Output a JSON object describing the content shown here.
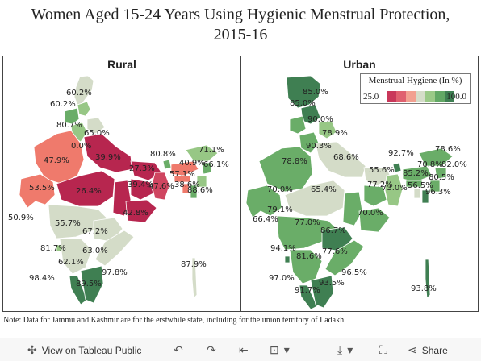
{
  "title_line1": "Women Aged 15-24 Years Using Hygienic Menstrual Protection,",
  "title_line2": "2015-16",
  "rural": {
    "title": "Rural",
    "labels": [
      {
        "name": "rural-label-jammu-kashmir-1",
        "text": "60.2%"
      },
      {
        "name": "rural-label-jammu-kashmir-2",
        "text": "60.2%"
      },
      {
        "name": "rural-label-punjab",
        "text": "80.7%"
      },
      {
        "name": "rural-label-uttarakhand",
        "text": "65.0%"
      },
      {
        "name": "rural-label-haryana",
        "text": "0.0%"
      },
      {
        "name": "rural-label-rajasthan",
        "text": "47.9%"
      },
      {
        "name": "rural-label-uttar-pradesh",
        "text": "39.9%"
      },
      {
        "name": "rural-label-bihar",
        "text": "27.3%"
      },
      {
        "name": "rural-label-gujarat",
        "text": "53.5%"
      },
      {
        "name": "rural-label-madhya-pradesh",
        "text": "26.4%"
      },
      {
        "name": "rural-label-jharkhand",
        "text": "39.4%"
      },
      {
        "name": "rural-label-west-bengal",
        "text": "47.6%"
      },
      {
        "name": "rural-label-sikkim",
        "text": "80.8%"
      },
      {
        "name": "rural-label-arunachal",
        "text": "71.1%"
      },
      {
        "name": "rural-label-assam",
        "text": "40.9%"
      },
      {
        "name": "rural-label-meghalaya",
        "text": "57.1%"
      },
      {
        "name": "rural-label-nagaland",
        "text": "66.1%"
      },
      {
        "name": "rural-label-tripura",
        "text": "38.6%"
      },
      {
        "name": "rural-label-mizoram",
        "text": "88.6%"
      },
      {
        "name": "rural-label-odisha",
        "text": "42.8%"
      },
      {
        "name": "rural-label-dadra",
        "text": "50.9%"
      },
      {
        "name": "rural-label-maharashtra",
        "text": "55.7%"
      },
      {
        "name": "rural-label-telangana",
        "text": "67.2%"
      },
      {
        "name": "rural-label-goa",
        "text": "81.7%"
      },
      {
        "name": "rural-label-andhra",
        "text": "63.0%"
      },
      {
        "name": "rural-label-karnataka",
        "text": "62.1%"
      },
      {
        "name": "rural-label-lakshadweep",
        "text": "98.4%"
      },
      {
        "name": "rural-label-puducherry",
        "text": "97.8%"
      },
      {
        "name": "rural-label-tamil-nadu",
        "text": "89.5%"
      },
      {
        "name": "rural-label-andaman",
        "text": "87.9%"
      }
    ]
  },
  "urban": {
    "title": "Urban",
    "labels": [
      {
        "name": "urban-label-jammu-kashmir-1",
        "text": "85.0%"
      },
      {
        "name": "urban-label-jammu-kashmir-2",
        "text": "85.0%"
      },
      {
        "name": "urban-label-himachal",
        "text": "90.0%"
      },
      {
        "name": "urban-label-uttarakhand",
        "text": "78.9%"
      },
      {
        "name": "urban-label-haryana",
        "text": "90.3%"
      },
      {
        "name": "urban-label-rajasthan",
        "text": "78.8%"
      },
      {
        "name": "urban-label-uttar-pradesh",
        "text": "68.6%"
      },
      {
        "name": "urban-label-bihar",
        "text": "55.6%"
      },
      {
        "name": "urban-label-sikkim",
        "text": "92.7%"
      },
      {
        "name": "urban-label-arunachal",
        "text": "78.6%"
      },
      {
        "name": "urban-label-assam",
        "text": "70.8%"
      },
      {
        "name": "urban-label-nagaland",
        "text": "82.0%"
      },
      {
        "name": "urban-label-meghalaya",
        "text": "85.2%"
      },
      {
        "name": "urban-label-manipur",
        "text": "80.5%"
      },
      {
        "name": "urban-label-gujarat",
        "text": "70.0%"
      },
      {
        "name": "urban-label-madhya-pradesh",
        "text": "65.4%"
      },
      {
        "name": "urban-label-jharkhand",
        "text": "77.2%"
      },
      {
        "name": "urban-label-west-bengal",
        "text": "73.0%"
      },
      {
        "name": "urban-label-tripura",
        "text": "56.5%"
      },
      {
        "name": "urban-label-mizoram",
        "text": "96.3%"
      },
      {
        "name": "urban-label-daman",
        "text": "79.1%"
      },
      {
        "name": "urban-label-dadra",
        "text": "66.4%"
      },
      {
        "name": "urban-label-chhattisgarh",
        "text": "70.0%"
      },
      {
        "name": "urban-label-maharashtra",
        "text": "77.0%"
      },
      {
        "name": "urban-label-telangana",
        "text": "86.7%"
      },
      {
        "name": "urban-label-goa",
        "text": "94.1%"
      },
      {
        "name": "urban-label-karnataka",
        "text": "81.6%"
      },
      {
        "name": "urban-label-andhra",
        "text": "77.6%"
      },
      {
        "name": "urban-label-lakshadweep",
        "text": "97.0%"
      },
      {
        "name": "urban-label-puducherry",
        "text": "96.5%"
      },
      {
        "name": "urban-label-kerala",
        "text": "91.7%"
      },
      {
        "name": "urban-label-tamil-nadu",
        "text": "93.5%"
      },
      {
        "name": "urban-label-andaman",
        "text": "93.8%"
      }
    ]
  },
  "legend": {
    "title": "Menstrual Hygiene (In %)",
    "min": "25.0",
    "max": "100.0",
    "colors": [
      "#c9375a",
      "#e0606f",
      "#f2a090",
      "#d5ddc9",
      "#9ac987",
      "#62a865",
      "#3e7f52"
    ]
  },
  "note": "Note: Data for Jammu and Kashmir are for the erstwhile state, including for the union territory of Ladakh",
  "toolbar": {
    "view_label": "View on Tableau Public",
    "share_label": "Share"
  },
  "colors": {
    "c_dark_red": "#b7264f",
    "c_red": "#cf4560",
    "c_salmon": "#ef7a6c",
    "c_grey": "#d4dcc8",
    "c_light_green": "#97c785",
    "c_green": "#6aad68",
    "c_dark_green": "#3f7f52"
  }
}
